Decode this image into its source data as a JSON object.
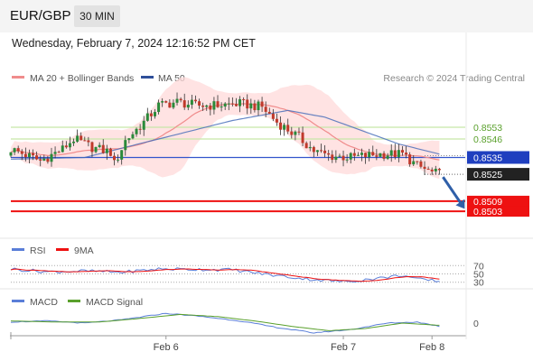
{
  "header": {
    "pair": "EUR/GBP",
    "timeframe": "30 MIN"
  },
  "date_line": "Wednesday, February 7, 2024 12:16:52 PM CET",
  "legend": {
    "ma20": "MA 20 + Bollinger Bands",
    "ma50": "MA 50",
    "credit": "Research © 2024 Trading Central",
    "rsi": "RSI",
    "rsi_ma": "9MA",
    "macd": "MACD",
    "macd_signal": "MACD Signal"
  },
  "colors": {
    "bull": "#2a8a3a",
    "bear": "#c0392b",
    "ma20": "#f08c8c",
    "ma50": "#4169b8",
    "bands": "#ffd9d9",
    "pivot": "#3355cc",
    "support": "#ee1111",
    "resistance": "#c8e6a8",
    "price_tag": "#222222",
    "macd": "#5a7ed8",
    "macd_signal": "#5aa02c",
    "arrow": "#2f5fa8"
  },
  "chart_data": {
    "type": "candlestick",
    "y_range": [
      0.8488,
      0.8575
    ],
    "levels": [
      {
        "value": 0.8553,
        "label": "0.8553",
        "kind": "resistance"
      },
      {
        "value": 0.8546,
        "label": "0.8546",
        "kind": "resistance"
      },
      {
        "value": 0.8535,
        "label": "0.8535",
        "kind": "pivot"
      },
      {
        "value": 0.8525,
        "label": "0.8525",
        "kind": "price"
      },
      {
        "value": 0.8509,
        "label": "0.8509",
        "kind": "support"
      },
      {
        "value": 0.8503,
        "label": "0.8503",
        "kind": "support"
      }
    ],
    "x_ticks": [
      {
        "label": "Feb 6",
        "bar": 42
      },
      {
        "label": "Feb 7",
        "bar": 90
      },
      {
        "label": "Feb 8",
        "bar": 114
      }
    ],
    "bars_total": 124,
    "forecast_arrow": {
      "from_bar": 116,
      "from": 0.8525,
      "to_bar": 123,
      "to": 0.8506
    },
    "price_waypoints": [
      [
        0,
        0.854
      ],
      [
        8,
        0.8533
      ],
      [
        14,
        0.854
      ],
      [
        17,
        0.8546
      ],
      [
        22,
        0.8541
      ],
      [
        27,
        0.8538
      ],
      [
        28,
        0.8531
      ],
      [
        31,
        0.8545
      ],
      [
        36,
        0.8556
      ],
      [
        40,
        0.8566
      ],
      [
        45,
        0.8568
      ],
      [
        50,
        0.8566
      ],
      [
        55,
        0.8566
      ],
      [
        62,
        0.8567
      ],
      [
        68,
        0.8565
      ],
      [
        72,
        0.8556
      ],
      [
        78,
        0.8547
      ],
      [
        82,
        0.8539
      ],
      [
        86,
        0.8536
      ],
      [
        92,
        0.8535
      ],
      [
        100,
        0.8537
      ],
      [
        106,
        0.8537
      ],
      [
        110,
        0.853
      ],
      [
        114,
        0.8526
      ],
      [
        116,
        0.8525
      ]
    ],
    "ma50_waypoints": [
      [
        0,
        0.8534
      ],
      [
        20,
        0.8535
      ],
      [
        40,
        0.8546
      ],
      [
        60,
        0.8557
      ],
      [
        75,
        0.8563
      ],
      [
        85,
        0.8559
      ],
      [
        95,
        0.8551
      ],
      [
        105,
        0.8543
      ],
      [
        116,
        0.8537
      ]
    ],
    "rsi": {
      "levels": [
        {
          "value": 70,
          "label": "70"
        },
        {
          "value": 50,
          "label": "50"
        },
        {
          "value": 30,
          "label": "30"
        }
      ],
      "waypoints": [
        [
          0,
          62
        ],
        [
          10,
          55
        ],
        [
          20,
          57
        ],
        [
          30,
          54
        ],
        [
          40,
          62
        ],
        [
          50,
          61
        ],
        [
          60,
          60
        ],
        [
          70,
          48
        ],
        [
          80,
          38
        ],
        [
          90,
          31
        ],
        [
          100,
          40
        ],
        [
          106,
          47
        ],
        [
          110,
          37
        ],
        [
          116,
          33
        ]
      ]
    },
    "macd": {
      "zero_label": "0",
      "macd_waypoints": [
        [
          0,
          0.0001
        ],
        [
          10,
          0.0002
        ],
        [
          20,
          0.0
        ],
        [
          30,
          0.0003
        ],
        [
          42,
          0.0009
        ],
        [
          52,
          0.0006
        ],
        [
          62,
          0.0002
        ],
        [
          72,
          -0.0004
        ],
        [
          82,
          -0.0009
        ],
        [
          92,
          -0.0006
        ],
        [
          102,
          0.0
        ],
        [
          110,
          0.0001
        ],
        [
          116,
          -0.0003
        ]
      ],
      "signal_waypoints": [
        [
          0,
          0.0002
        ],
        [
          12,
          0.0001
        ],
        [
          24,
          0.0001
        ],
        [
          34,
          0.0004
        ],
        [
          46,
          0.0008
        ],
        [
          56,
          0.0006
        ],
        [
          66,
          0.0002
        ],
        [
          76,
          -0.0003
        ],
        [
          86,
          -0.0007
        ],
        [
          96,
          -0.0005
        ],
        [
          106,
          0.0
        ],
        [
          116,
          -0.0002
        ]
      ]
    }
  }
}
